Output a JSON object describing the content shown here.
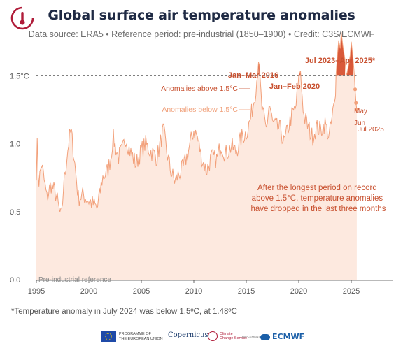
{
  "header": {
    "title": "Global surface air temperature anomalies",
    "subtitle": "Data source: ERA5 • Reference period: pre-industrial (1850–1900) • Credit: C3S/ECMWF"
  },
  "footnote": "*Temperature anomaly in July 2024 was below 1.5ºC, at 1.48ºC",
  "logos": {
    "eu_line1": "PROGRAMME OF",
    "eu_line2": "THE EUROPEAN UNION",
    "copernicus": "Copernicus",
    "c3s_line1": "Climate",
    "c3s_line2": "Change Service",
    "implemented": "IMPLEMENTED BY",
    "ecmwf": "ECMWF"
  },
  "colors": {
    "title": "#1f2a44",
    "line": "#f2a07a",
    "fill": "#fde9df",
    "above": "#d9593a",
    "annotation": "#c8502f",
    "below_label": "#f0a07a",
    "threshold": "#555555"
  },
  "chart_data": {
    "type": "area",
    "xlim": [
      1995,
      2029
    ],
    "ylim": [
      0,
      1.8
    ],
    "x_ticks": [
      "1995",
      "2000",
      "2005",
      "2010",
      "2015",
      "2020",
      "2025"
    ],
    "y_ticks": [
      "0.0",
      "0.5",
      "1.0",
      "1.5°C"
    ],
    "threshold": 1.5,
    "threshold_note": "dashed line at 1.5°C",
    "grid": false,
    "reference_label": "Pre-industrial reference",
    "legend": {
      "above": "Anomalies above 1.5°C",
      "below": "Anomalies below 1.5°C"
    },
    "annotations": {
      "peak_2016": "Jan–Mar 2016",
      "peak_2020": "Jan–Feb 2020",
      "peak_2023": "Jul 2023–Apr 2025*",
      "note": "After the longest period on record above 1.5°C, temperature anomalies have dropped in the last three months",
      "may": "May",
      "jun": "Jun",
      "jul": "Jul 2025"
    },
    "keypoints": [
      [
        1995.0,
        0.8
      ],
      [
        1995.1,
        1.02
      ],
      [
        1995.2,
        0.7
      ],
      [
        1995.5,
        0.85
      ],
      [
        1996.0,
        0.6
      ],
      [
        1996.4,
        0.7
      ],
      [
        1996.9,
        0.62
      ],
      [
        1997.2,
        0.5
      ],
      [
        1997.4,
        0.45
      ],
      [
        1997.6,
        0.7
      ],
      [
        1997.9,
        0.9
      ],
      [
        1998.1,
        1.02
      ],
      [
        1998.3,
        1.1
      ],
      [
        1998.6,
        0.9
      ],
      [
        1999.0,
        0.6
      ],
      [
        1999.5,
        0.62
      ],
      [
        2000.0,
        0.58
      ],
      [
        2000.5,
        0.55
      ],
      [
        2000.8,
        0.52
      ],
      [
        2001.3,
        0.75
      ],
      [
        2001.8,
        0.8
      ],
      [
        2002.1,
        0.9
      ],
      [
        2002.3,
        1.05
      ],
      [
        2002.8,
        0.9
      ],
      [
        2003.2,
        0.95
      ],
      [
        2003.5,
        1.05
      ],
      [
        2003.9,
        0.95
      ],
      [
        2004.5,
        0.85
      ],
      [
        2005.0,
        0.95
      ],
      [
        2005.4,
        1.0
      ],
      [
        2005.8,
        0.95
      ],
      [
        2006.5,
        0.9
      ],
      [
        2007.1,
        1.1
      ],
      [
        2007.4,
        0.95
      ],
      [
        2007.8,
        0.8
      ],
      [
        2008.2,
        0.72
      ],
      [
        2008.6,
        0.78
      ],
      [
        2009.0,
        0.82
      ],
      [
        2009.5,
        0.95
      ],
      [
        2010.0,
        1.1
      ],
      [
        2010.3,
        1.06
      ],
      [
        2010.8,
        0.88
      ],
      [
        2011.2,
        0.8
      ],
      [
        2011.7,
        0.9
      ],
      [
        2012.2,
        0.88
      ],
      [
        2012.6,
        1.0
      ],
      [
        2013.0,
        0.92
      ],
      [
        2013.6,
        0.98
      ],
      [
        2014.0,
        0.94
      ],
      [
        2014.6,
        1.05
      ],
      [
        2015.0,
        1.08
      ],
      [
        2015.4,
        1.18
      ],
      [
        2015.8,
        1.35
      ],
      [
        2016.05,
        1.5
      ],
      [
        2016.15,
        1.66
      ],
      [
        2016.25,
        1.52
      ],
      [
        2016.5,
        1.25
      ],
      [
        2016.9,
        1.1
      ],
      [
        2017.2,
        1.3
      ],
      [
        2017.5,
        1.15
      ],
      [
        2017.9,
        1.12
      ],
      [
        2018.3,
        1.1
      ],
      [
        2018.6,
        1.0
      ],
      [
        2019.0,
        1.12
      ],
      [
        2019.3,
        1.2
      ],
      [
        2019.7,
        1.26
      ],
      [
        2020.0,
        1.45
      ],
      [
        2020.1,
        1.57
      ],
      [
        2020.2,
        1.48
      ],
      [
        2020.5,
        1.2
      ],
      [
        2020.9,
        1.12
      ],
      [
        2021.3,
        1.05
      ],
      [
        2021.7,
        1.12
      ],
      [
        2022.1,
        1.1
      ],
      [
        2022.5,
        1.15
      ],
      [
        2022.9,
        1.05
      ],
      [
        2023.2,
        1.2
      ],
      [
        2023.5,
        1.35
      ],
      [
        2023.55,
        1.5
      ],
      [
        2023.65,
        1.62
      ],
      [
        2023.8,
        1.76
      ],
      [
        2023.95,
        1.7
      ],
      [
        2024.05,
        1.82
      ],
      [
        2024.2,
        1.72
      ],
      [
        2024.4,
        1.62
      ],
      [
        2024.53,
        1.5
      ],
      [
        2024.6,
        1.52
      ],
      [
        2024.75,
        1.58
      ],
      [
        2024.9,
        1.65
      ],
      [
        2025.0,
        1.75
      ],
      [
        2025.1,
        1.68
      ],
      [
        2025.2,
        1.6
      ],
      [
        2025.3,
        1.5
      ],
      [
        2025.37,
        1.4
      ],
      [
        2025.45,
        1.3
      ],
      [
        2025.53,
        1.25
      ]
    ],
    "recent_points": [
      {
        "label": "May",
        "x": 2025.37,
        "y": 1.4
      },
      {
        "label": "Jun",
        "x": 2025.45,
        "y": 1.3
      },
      {
        "label": "Jul 2025",
        "x": 2025.53,
        "y": 1.25
      }
    ]
  }
}
